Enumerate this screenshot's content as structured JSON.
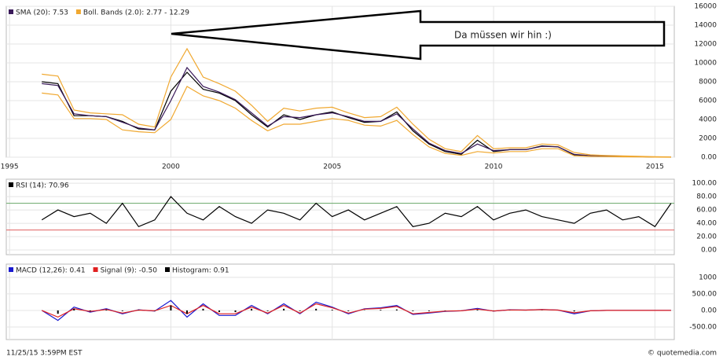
{
  "chart_data": [
    {
      "type": "line",
      "annotation": "Da müssen wir hin :)",
      "x": [
        1996.0,
        1996.5,
        1997.0,
        1997.5,
        1998.0,
        1998.5,
        1999.0,
        1999.5,
        2000.0,
        2000.5,
        2001.0,
        2001.5,
        2002.0,
        2002.5,
        2003.0,
        2003.5,
        2004.0,
        2004.5,
        2005.0,
        2005.5,
        2006.0,
        2006.5,
        2007.0,
        2007.5,
        2008.0,
        2008.5,
        2009.0,
        2009.5,
        2010.0,
        2010.5,
        2011.0,
        2011.5,
        2012.0,
        2012.5,
        2013.0,
        2013.5,
        2014.0,
        2014.5,
        2015.0,
        2015.5
      ],
      "xlim": [
        1994.9,
        2015.6
      ],
      "xticks": [
        1995,
        2000,
        2005,
        2010,
        2015
      ],
      "ylim": [
        0,
        16000
      ],
      "yticks": [
        {
          "value": 0,
          "label": "0.00"
        },
        2000,
        4000,
        6000,
        8000,
        10000,
        12000,
        14000,
        16000
      ],
      "grid": true,
      "series": [
        {
          "color": "#000000",
          "values": [
            8000,
            7800,
            4400,
            4400,
            4300,
            3800,
            3000,
            2900,
            7000,
            9000,
            7200,
            6800,
            6000,
            4500,
            3200,
            4500,
            4000,
            4500,
            4800,
            4200,
            3700,
            3800,
            4800,
            2800,
            1400,
            600,
            300,
            1800,
            600,
            800,
            800,
            1200,
            1100,
            250,
            150,
            120,
            80,
            60,
            20,
            10
          ]
        },
        {
          "name": "SMA (20): 7.53",
          "color": "#3a1a5a",
          "values": [
            7800,
            7600,
            4600,
            4400,
            4300,
            3700,
            3100,
            2900,
            6000,
            9500,
            7500,
            6900,
            6100,
            4700,
            3300,
            4300,
            4200,
            4500,
            4700,
            4300,
            3800,
            3800,
            4600,
            3000,
            1500,
            700,
            400,
            1400,
            700,
            800,
            800,
            1150,
            1100,
            300,
            160,
            120,
            85,
            60,
            25,
            12
          ]
        },
        {
          "name": "Boll. Bands (2.0): 2.77 - 12.29",
          "color": "#f0a830",
          "upper": [
            8800,
            8600,
            5000,
            4700,
            4600,
            4500,
            3500,
            3200,
            8500,
            11500,
            8500,
            7800,
            7000,
            5500,
            3800,
            5200,
            4900,
            5200,
            5300,
            4700,
            4200,
            4300,
            5300,
            3500,
            1900,
            900,
            600,
            2300,
            900,
            1000,
            1000,
            1400,
            1300,
            500,
            250,
            180,
            130,
            100,
            50,
            30
          ],
          "lower": [
            6800,
            6600,
            4100,
            4100,
            4000,
            2900,
            2700,
            2600,
            4000,
            7500,
            6500,
            6000,
            5200,
            3900,
            2800,
            3500,
            3500,
            3800,
            4100,
            3900,
            3400,
            3300,
            3900,
            2400,
            1100,
            400,
            200,
            600,
            450,
            600,
            600,
            900,
            900,
            150,
            80,
            60,
            40,
            25,
            5,
            2
          ]
        }
      ]
    },
    {
      "type": "line",
      "ylim": [
        -7,
        106
      ],
      "yticks": [
        {
          "value": 0,
          "label": "0.00"
        },
        {
          "value": 20,
          "label": "20.00"
        },
        {
          "value": 40,
          "label": "40.00"
        },
        {
          "value": 60,
          "label": "60.00"
        },
        {
          "value": 80,
          "label": "80.00"
        },
        {
          "value": 100,
          "label": "100.00"
        }
      ],
      "grid": true,
      "reference_lines": [
        {
          "value": 70,
          "color": "#6aa86a"
        },
        {
          "value": 30,
          "color": "#e06060"
        }
      ],
      "series": [
        {
          "name": "RSI (14): 70.96",
          "color": "#000000",
          "values": [
            45,
            60,
            50,
            55,
            40,
            70,
            35,
            45,
            80,
            55,
            45,
            65,
            50,
            40,
            60,
            55,
            45,
            70,
            50,
            60,
            45,
            55,
            65,
            35,
            40,
            55,
            50,
            65,
            45,
            55,
            60,
            50,
            45,
            40,
            55,
            60,
            45,
            50,
            35,
            70
          ]
        }
      ]
    },
    {
      "type": "line",
      "ylim": [
        -880,
        1400
      ],
      "yticks": [
        {
          "value": -500,
          "label": "-500.00"
        },
        {
          "value": 0,
          "label": "0.00"
        },
        {
          "value": 500,
          "label": "500.00"
        },
        1000
      ],
      "grid": true,
      "series": [
        {
          "name": "MACD (12,26): 0.41",
          "color": "#1a1ad0",
          "values": [
            0,
            -300,
            100,
            -50,
            50,
            -100,
            20,
            -20,
            300,
            -200,
            200,
            -150,
            -150,
            150,
            -100,
            200,
            -100,
            250,
            100,
            -100,
            50,
            80,
            150,
            -120,
            -80,
            -30,
            -10,
            60,
            -20,
            20,
            10,
            30,
            10,
            -100,
            -10,
            0,
            0,
            0,
            0,
            0
          ]
        },
        {
          "name": "Signal (9): -0.50",
          "color": "#e02020",
          "values": [
            0,
            -200,
            50,
            -30,
            30,
            -80,
            10,
            -10,
            150,
            -100,
            150,
            -100,
            -100,
            100,
            -80,
            150,
            -80,
            200,
            80,
            -80,
            40,
            60,
            120,
            -100,
            -60,
            -20,
            -10,
            40,
            -15,
            15,
            10,
            25,
            10,
            -70,
            -10,
            0,
            0,
            0,
            0,
            0
          ]
        },
        {
          "name": "Histogram: 0.91",
          "color": "#000000",
          "type": "bar",
          "values": [
            0,
            -100,
            50,
            -20,
            20,
            -20,
            10,
            -10,
            150,
            -100,
            50,
            -50,
            -50,
            50,
            -20,
            50,
            -20,
            50,
            20,
            -20,
            10,
            20,
            30,
            -20,
            -20,
            -10,
            0,
            20,
            -5,
            5,
            0,
            5,
            0,
            -30,
            0,
            0,
            0,
            0,
            0,
            0
          ]
        }
      ]
    }
  ],
  "footer": {
    "timestamp": "11/25/15 3:59PM EST",
    "source": "© quotemedia.com"
  }
}
